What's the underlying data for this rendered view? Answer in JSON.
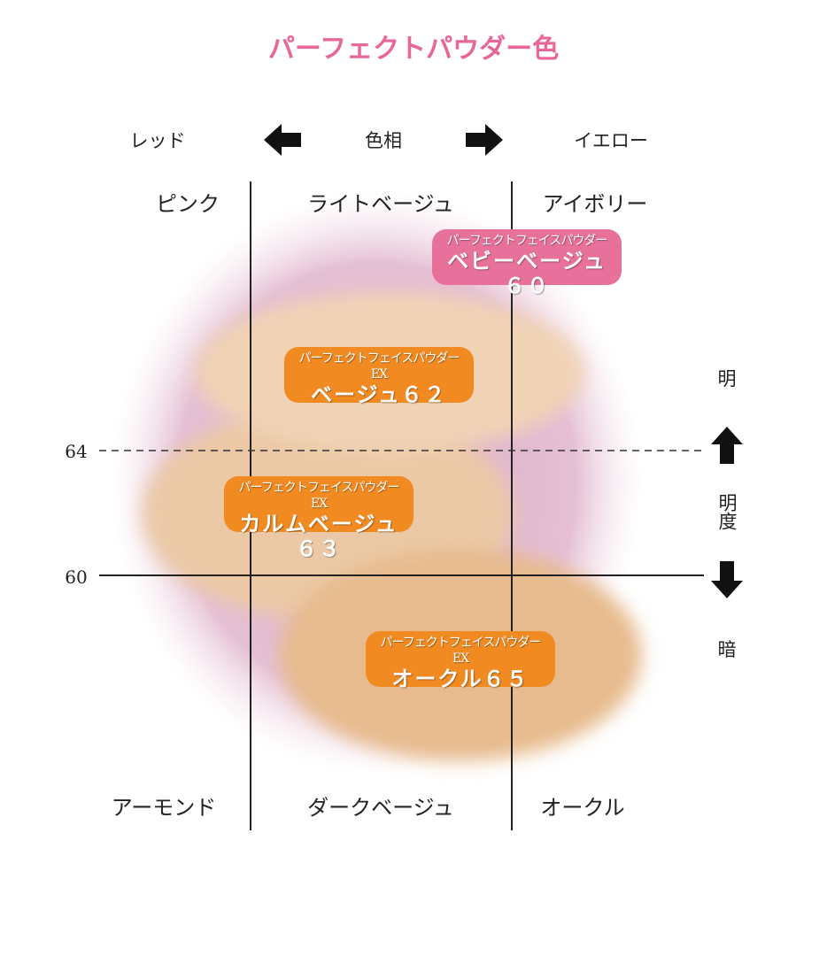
{
  "title": "パーフェクトパウダー色",
  "hue_axis": {
    "left": "レッド",
    "center": "色相",
    "right": "イエロー"
  },
  "lightness_axis": {
    "top": "明",
    "center": "明度",
    "bottom": "暗",
    "levels": [
      "64",
      "60"
    ]
  },
  "zones": {
    "top": [
      "ピンク",
      "ライトベージュ",
      "アイボリー"
    ],
    "bottom": [
      "アーモンド",
      "ダークベージュ",
      "オークル"
    ]
  },
  "products": [
    {
      "series": "パーフェクトフェイスパウダー",
      "name": "ベビーベージュ６０",
      "color": "#e8719c"
    },
    {
      "series": "パーフェクトフェイスパウダーEX",
      "name": "ベージュ６２",
      "color": "#f28a22"
    },
    {
      "series": "パーフェクトフェイスパウダーEX",
      "name": "カルムベージュ６３",
      "color": "#f28a22"
    },
    {
      "series": "パーフェクトフェイスパウダーEX",
      "name": "オークル６５",
      "color": "#f28a22"
    }
  ],
  "colors": {
    "title": "#e8679a",
    "pink_glow": "#d8a2c0",
    "beige": "#efcfae",
    "ochre": "#e7bb8e"
  }
}
